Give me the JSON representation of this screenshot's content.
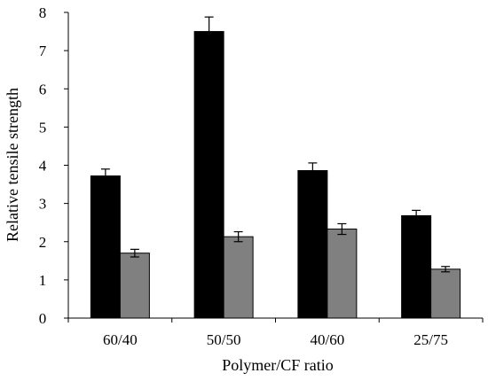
{
  "chart_data": {
    "type": "bar",
    "title": "",
    "xlabel": "Polymer/CF ratio",
    "ylabel": "Relative tensile strength",
    "categories": [
      "60/40",
      "50/50",
      "40/60",
      "25/75"
    ],
    "ylim": [
      0,
      8
    ],
    "yticks": [
      0,
      1,
      2,
      3,
      4,
      5,
      6,
      7,
      8
    ],
    "grid": false,
    "legend": "none",
    "error_bars": true,
    "series": [
      {
        "color": "#000000",
        "values": [
          3.72,
          7.5,
          3.86,
          2.68
        ],
        "errors": [
          0.18,
          0.38,
          0.2,
          0.14
        ]
      },
      {
        "color": "#808080",
        "values": [
          1.7,
          2.13,
          2.33,
          1.28
        ],
        "errors": [
          0.1,
          0.13,
          0.14,
          0.07
        ]
      }
    ]
  }
}
